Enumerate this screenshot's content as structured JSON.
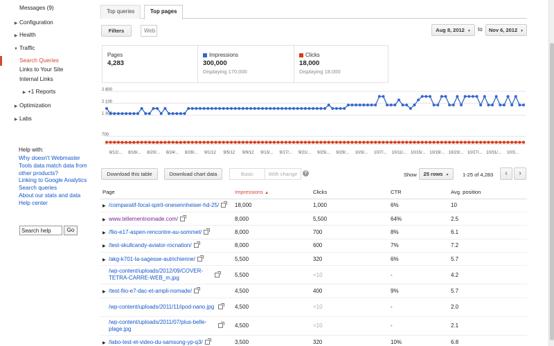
{
  "sidebar": {
    "messages": "Messages (9)",
    "configuration": "Configuration",
    "health": "Health",
    "traffic": "Traffic",
    "search_queries": "Search Queries",
    "links_to_site": "Links to Your Site",
    "internal_links": "Internal Links",
    "plus1_reports": "+1 Reports",
    "optimization": "Optimization",
    "labs": "Labs",
    "help_title": "Help with:",
    "help_links": [
      "Why doesn't Webmaster Tools data match data from other products?",
      "Linking to Google Analytics",
      "Search queries",
      "About our stats and data",
      "Help center"
    ],
    "search_help_value": "Search help",
    "go_label": "Go"
  },
  "tabs": {
    "top_queries": "Top queries",
    "top_pages": "Top pages"
  },
  "filters": {
    "filters_label": "Filters",
    "web_label": "Web"
  },
  "date_range": {
    "from": "Aug 8, 2012",
    "to_label": "to",
    "to": "Nov 6, 2012"
  },
  "summary": {
    "pages_label": "Pages",
    "pages_value": "4,283",
    "impressions_label": "Impressions",
    "impressions_value": "300,000",
    "impressions_sub": "Displaying 170,000",
    "clicks_label": "Clicks",
    "clicks_value": "18,000",
    "clicks_sub": "Displaying 18,000"
  },
  "colors": {
    "impressions": "#3366cc",
    "clicks": "#dc3912",
    "accent": "#d14836"
  },
  "chart_data": {
    "type": "line",
    "x_tick_labels": [
      "8/12/...",
      "8/16/...",
      "8/20/...",
      "8/24/...",
      "8/28/...",
      "9/1/12",
      "9/5/12",
      "9/9/12",
      "9/13/...",
      "9/17/...",
      "9/21/...",
      "9/25/...",
      "9/29/...",
      "10/3/...",
      "10/7/...",
      "10/11/...",
      "10/15/...",
      "10/19/...",
      "10/23/...",
      "10/27/...",
      "10/31/...",
      "10/3..."
    ],
    "upper_axis": {
      "ticks": [
        "2 800",
        "2 100",
        "1 400"
      ],
      "ylim": [
        1100,
        2800
      ]
    },
    "lower_axis": {
      "ticks": [
        "700"
      ],
      "ylim": [
        0,
        900
      ]
    },
    "series": [
      {
        "name": "Impressions",
        "values": [
          1800,
          1500,
          1500,
          1500,
          1500,
          1500,
          1500,
          1500,
          1500,
          1800,
          1500,
          1500,
          1800,
          1800,
          1500,
          1800,
          1500,
          1500,
          1500,
          1500,
          1500,
          1800,
          1800,
          1800,
          1800,
          1800,
          1800,
          1800,
          1800,
          1800,
          1800,
          1800,
          1800,
          1800,
          1800,
          1800,
          1800,
          1800,
          1800,
          1800,
          1800,
          1800,
          1800,
          1800,
          1800,
          1800,
          1800,
          1800,
          1800,
          1800,
          1800,
          1800,
          1800,
          1800,
          1800,
          1800,
          1800,
          2000,
          1800,
          1800,
          1800,
          1800,
          2000,
          2000,
          2000,
          2000,
          2000,
          2000,
          2000,
          2000,
          2500,
          2500,
          2000,
          2000,
          2000,
          2300,
          2000,
          2000,
          1800,
          2000,
          2300,
          2500,
          2500,
          2500,
          2000,
          2000,
          2500,
          2500,
          2000,
          2000,
          2500,
          2000,
          2500,
          2500,
          2500,
          2500,
          2000,
          2500,
          2000,
          2000,
          2500,
          2000,
          2000,
          2500,
          2000,
          2500,
          2000,
          2000
        ]
      },
      {
        "name": "Clicks",
        "values": [
          160,
          160,
          160,
          160,
          150,
          150,
          150,
          150,
          160,
          160,
          160,
          160,
          150,
          150,
          150,
          150,
          160,
          160,
          150,
          150,
          160,
          160,
          160,
          160,
          160,
          160,
          160,
          160,
          160,
          160,
          160,
          160,
          160,
          160,
          160,
          160,
          160,
          160,
          160,
          160,
          160,
          160,
          160,
          160,
          160,
          160,
          160,
          160,
          160,
          160,
          160,
          160,
          160,
          160,
          160,
          160,
          160,
          160,
          160,
          160,
          160,
          160,
          160,
          160,
          160,
          160,
          160,
          160,
          160,
          160,
          160,
          160,
          160,
          160,
          160,
          160,
          160,
          160,
          160,
          160,
          160,
          160,
          160,
          160,
          160,
          160,
          160,
          160,
          160,
          160,
          160,
          160,
          160,
          160,
          160,
          160,
          160,
          160,
          160,
          160,
          160,
          160,
          160,
          160,
          160,
          160,
          160,
          160
        ]
      }
    ]
  },
  "toolbar": {
    "download_table": "Download this table",
    "download_chart": "Download chart data",
    "basic": "Basic",
    "with_change": "With change",
    "show_label": "Show",
    "rows_select": "25 rows",
    "range": "1-25 of 4,283"
  },
  "table": {
    "headers": {
      "page": "Page",
      "impressions": "Impressions",
      "clicks": "Clicks",
      "ctr": "CTR",
      "avg_position": "Avg. position"
    },
    "rows": [
      {
        "page": "/comparatif-focal-spirit-onesennheiser-hd-25/",
        "impressions": "18,000",
        "clicks": "1,000",
        "ctr": "6%",
        "pos": "10"
      },
      {
        "page": "www.tellementnomade.com/",
        "impressions": "8,000",
        "clicks": "5,500",
        "ctr": "64%",
        "pos": "2.5"
      },
      {
        "page": "/fiio-e17-aspen-rencontre-au-sommet/",
        "impressions": "8,000",
        "clicks": "700",
        "ctr": "8%",
        "pos": "6.1"
      },
      {
        "page": "/test-skullcandy-aviator-rocnation/",
        "impressions": "8,000",
        "clicks": "600",
        "ctr": "7%",
        "pos": "7.2"
      },
      {
        "page": "/akg-k701-la-sagesse-autrichienne/",
        "impressions": "5,500",
        "clicks": "320",
        "ctr": "6%",
        "pos": "5.7"
      },
      {
        "page": "/wp-content/uploads/2012/09/COVER-TETRA-CARRE-WEB_m.jpg",
        "impressions": "5,500",
        "clicks": "<10",
        "ctr": "-",
        "pos": "4.2"
      },
      {
        "page": "/test-fiio-e7-dac-et-ampli-nomade/",
        "impressions": "4,500",
        "clicks": "400",
        "ctr": "9%",
        "pos": "5.7"
      },
      {
        "page": "/wp-content/uploads/2011/11/ipod-nano.jpg",
        "impressions": "4,500",
        "clicks": "<10",
        "ctr": "-",
        "pos": "2.0"
      },
      {
        "page": "/wp-content/uploads/2011/07/plus-belle-plage.jpg",
        "impressions": "4,500",
        "clicks": "<10",
        "ctr": "-",
        "pos": "2.1"
      },
      {
        "page": "/labo-test-et-video-du-samsung-yp-q3/",
        "impressions": "3,500",
        "clicks": "320",
        "ctr": "10%",
        "pos": "6.8"
      }
    ]
  }
}
